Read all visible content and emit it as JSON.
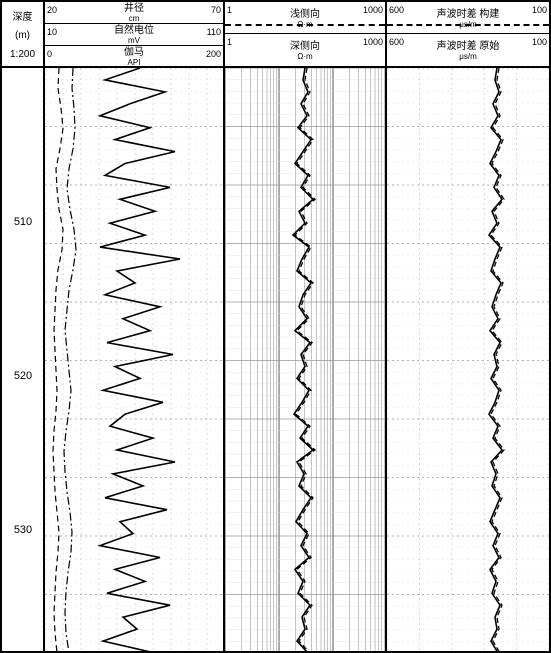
{
  "depth": {
    "label": "深度",
    "unit": "(m)",
    "scale": "1:200",
    "ticks": [
      510,
      520,
      530
    ],
    "start": 500,
    "end": 538
  },
  "track1": {
    "curves": [
      {
        "name": "井径",
        "unit": "cm",
        "left": "20",
        "right": "70",
        "style": "dash",
        "color": "#000"
      },
      {
        "name": "自然电位",
        "unit": "mV",
        "left": "10",
        "right": "110",
        "style": "dashdot",
        "color": "#000"
      },
      {
        "name": "伽马",
        "unit": "API",
        "left": "0",
        "right": "200",
        "style": "solid",
        "color": "#000"
      }
    ],
    "width": 180,
    "grid_divisions": 10,
    "grid_color": "#bbb",
    "grid_dash": true,
    "minor_y_divisions": 50,
    "caliper_x": [
      14,
      13,
      16,
      18,
      15,
      11,
      12,
      14,
      18,
      17,
      13,
      11,
      10,
      9,
      10,
      11,
      12,
      11,
      9,
      8,
      9,
      10,
      12,
      14,
      13,
      11,
      10,
      9,
      10,
      12
    ],
    "sp_x": [
      28,
      27,
      29,
      30,
      28,
      24,
      22,
      25,
      29,
      31,
      28,
      24,
      22,
      20,
      22,
      24,
      26,
      24,
      21,
      19,
      20,
      22,
      25,
      27,
      26,
      23,
      21,
      20,
      21,
      24
    ],
    "gr_x": [
      95,
      60,
      120,
      85,
      55,
      105,
      70,
      130,
      80,
      60,
      125,
      75,
      110,
      65,
      100,
      55,
      135,
      72,
      90,
      60,
      115,
      78,
      105,
      62,
      128,
      70,
      95,
      58,
      118,
      80,
      65,
      108,
      72,
      130,
      68,
      98,
      60,
      122,
      75,
      88,
      55,
      115,
      70,
      100,
      62,
      125,
      78,
      92,
      58,
      110
    ]
  },
  "track2": {
    "curves": [
      {
        "name": "浅侧向",
        "unit": "Ω·m",
        "left": "1",
        "right": "1000",
        "style": "dash",
        "color": "#000"
      },
      {
        "name": "深侧向",
        "unit": "Ω·m",
        "left": "1",
        "right": "1000",
        "style": "solid",
        "color": "#000"
      }
    ],
    "width": 162,
    "log": true,
    "decades": 3,
    "grid_color": "#888",
    "minor_y_divisions": 50,
    "shallow_x": [
      82,
      80,
      85,
      78,
      84,
      75,
      88,
      80,
      72,
      85,
      78,
      90,
      76,
      82,
      70,
      86,
      79,
      74,
      88,
      80,
      76,
      84,
      72,
      87,
      78,
      82,
      74,
      86,
      79,
      71,
      85,
      77,
      90,
      74,
      81,
      76,
      88,
      80,
      73,
      84,
      78,
      86,
      72,
      80,
      75,
      87,
      79,
      82,
      74,
      85
    ],
    "deep_x": [
      80,
      78,
      83,
      76,
      82,
      73,
      86,
      78,
      70,
      83,
      76,
      88,
      74,
      80,
      68,
      84,
      77,
      72,
      86,
      78,
      74,
      82,
      70,
      85,
      76,
      80,
      72,
      84,
      77,
      69,
      83,
      75,
      88,
      72,
      79,
      74,
      86,
      78,
      71,
      82,
      76,
      84,
      70,
      78,
      73,
      85,
      77,
      80,
      72,
      83
    ]
  },
  "track3": {
    "curves": [
      {
        "name": "声波时差 构建",
        "unit": "μs/m",
        "left": "600",
        "right": "100",
        "style": "dash",
        "color": "#000"
      },
      {
        "name": "声波时差 原始",
        "unit": "μs/m",
        "left": "600",
        "right": "100",
        "style": "solid",
        "color": "#000"
      }
    ],
    "width": 162,
    "grid_divisions": 5,
    "grid_color": "#bbb",
    "minor_y_divisions": 50,
    "recon_x": [
      112,
      110,
      114,
      108,
      113,
      106,
      116,
      111,
      105,
      114,
      109,
      117,
      107,
      112,
      104,
      115,
      110,
      106,
      116,
      111,
      107,
      113,
      105,
      115,
      109,
      112,
      106,
      114,
      110,
      104,
      113,
      108,
      117,
      106,
      111,
      107,
      115,
      110,
      105,
      113,
      108,
      114,
      105,
      111,
      107,
      115,
      110,
      112,
      106,
      113
    ],
    "orig_x": [
      110,
      108,
      112,
      106,
      111,
      104,
      114,
      109,
      103,
      112,
      107,
      115,
      105,
      110,
      102,
      113,
      108,
      104,
      114,
      109,
      105,
      111,
      103,
      113,
      107,
      110,
      104,
      112,
      108,
      102,
      111,
      106,
      115,
      104,
      109,
      105,
      113,
      108,
      103,
      111,
      106,
      112,
      103,
      109,
      105,
      113,
      108,
      110,
      104,
      111
    ]
  },
  "colors": {
    "bg": "#ffffff",
    "border": "#000000"
  }
}
